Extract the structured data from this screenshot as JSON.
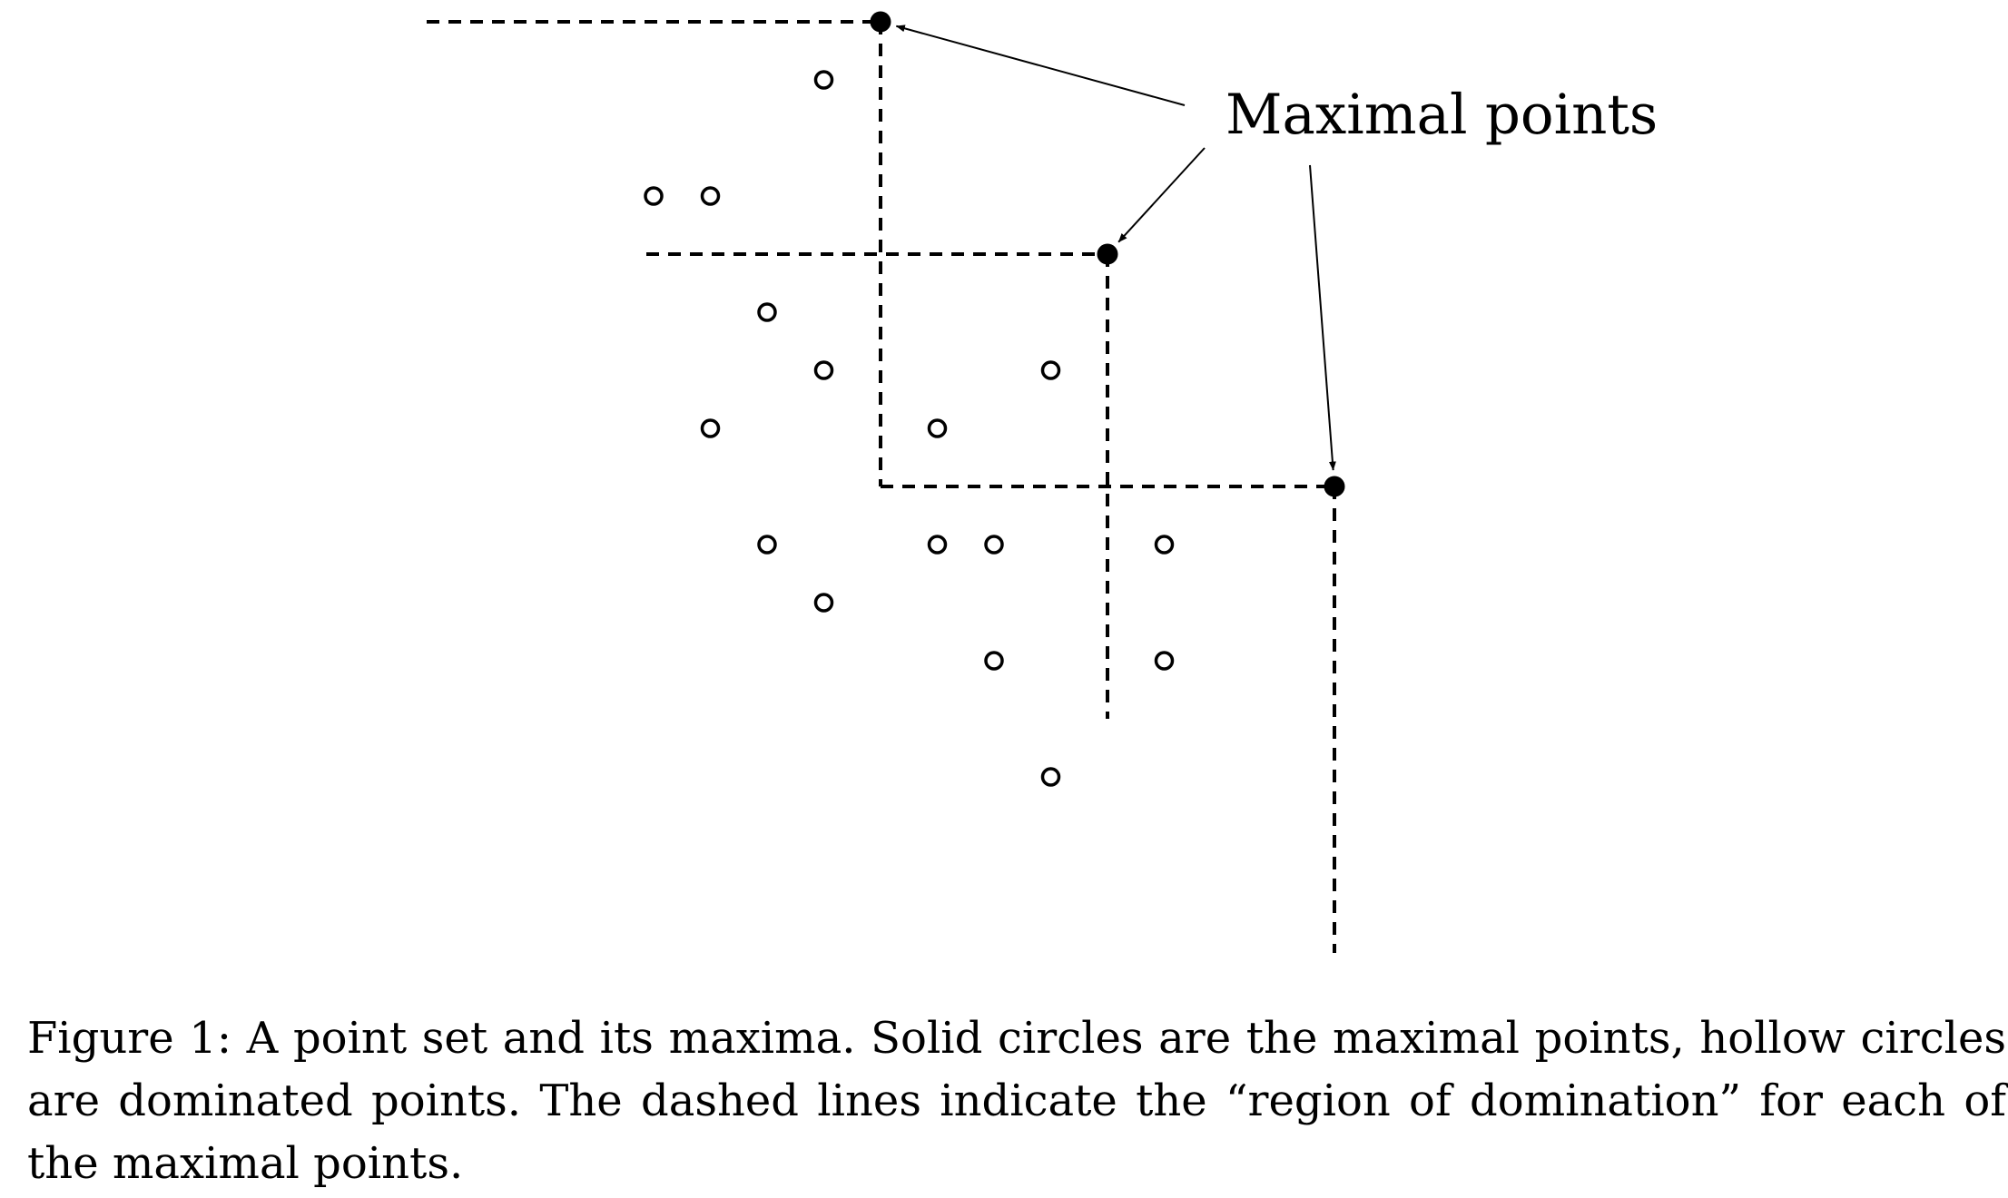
{
  "figure": {
    "annotation": "Maximal points",
    "maximal_points": [
      {
        "x": 4,
        "y": 8
      },
      {
        "x": 8,
        "y": 4
      },
      {
        "x": 12,
        "y": 0
      }
    ],
    "dominated_points": [
      {
        "x": 3,
        "y": 7
      },
      {
        "x": 0,
        "y": 5
      },
      {
        "x": 1,
        "y": 5
      },
      {
        "x": 2,
        "y": 3
      },
      {
        "x": 3,
        "y": 2
      },
      {
        "x": 7,
        "y": 2
      },
      {
        "x": 1,
        "y": 1
      },
      {
        "x": 5,
        "y": 1
      },
      {
        "x": 2,
        "y": -1
      },
      {
        "x": 5,
        "y": -1
      },
      {
        "x": 6,
        "y": -1
      },
      {
        "x": 9,
        "y": -1
      },
      {
        "x": 3,
        "y": -2
      },
      {
        "x": 6,
        "y": -3
      },
      {
        "x": 9,
        "y": -3
      },
      {
        "x": 7,
        "y": -5
      }
    ],
    "colors": {
      "ink": "#000000",
      "background": "#ffffff"
    }
  },
  "caption": "Figure 1: A point set and its maxima. Solid circles are the maximal points, hollow circles are dominated points. The dashed lines indicate the “region of domination” for each of the maximal points."
}
